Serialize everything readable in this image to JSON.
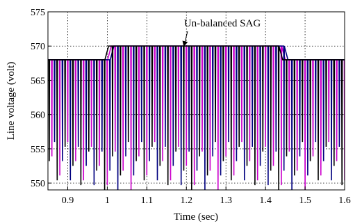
{
  "chart_data": {
    "type": "line",
    "title": "",
    "xlabel": "Time (sec)",
    "ylabel": "Line voltage (volt)",
    "xlim": [
      0.85,
      1.6
    ],
    "ylim": [
      549,
      575
    ],
    "xticks": [
      0.9,
      1.0,
      1.1,
      1.2,
      1.3,
      1.4,
      1.5,
      1.6
    ],
    "yticks": [
      550,
      555,
      560,
      565,
      570,
      575
    ],
    "grid": true,
    "annotation": {
      "text": "Un-balanced SAG",
      "points_to": {
        "x": 1.195,
        "y": 570
      }
    },
    "signal": {
      "description": "three-phase line voltages, rectified peaks clipped at top",
      "base_peak": 568,
      "sag_peak": 570,
      "sag_start": 1.0,
      "sag_end": 1.44,
      "trough": 549,
      "cycle_period": 0.02
    },
    "series": [
      {
        "color": "#cc00cc",
        "phase_offset": 0.0
      },
      {
        "color": "#00007f",
        "phase_offset": 0.0067
      },
      {
        "color": "#000000",
        "phase_offset": 0.0133
      }
    ]
  }
}
